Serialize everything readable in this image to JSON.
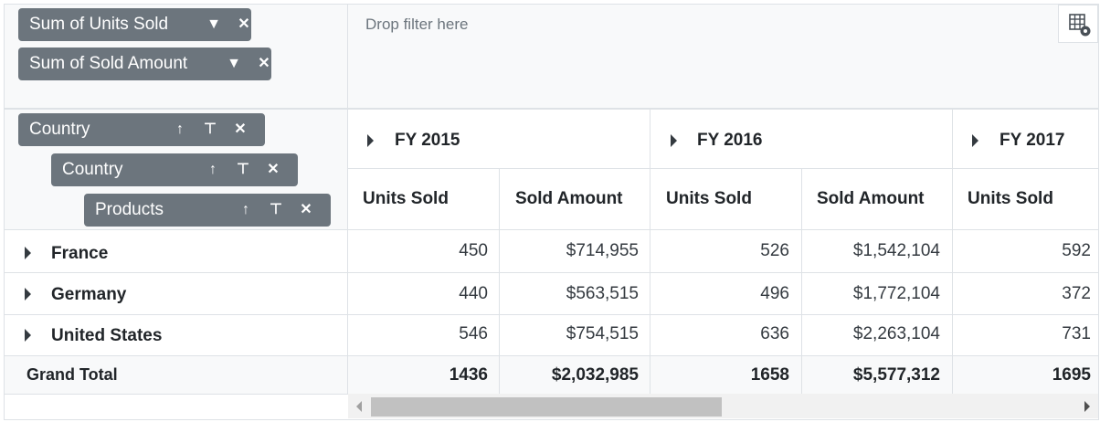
{
  "values_pills": [
    {
      "label": "Sum of Units Sold"
    },
    {
      "label": "Sum of Sold Amount"
    }
  ],
  "filter_area": {
    "placeholder": "Drop filter here"
  },
  "row_pills": [
    {
      "label": "Country"
    },
    {
      "label": "Country"
    },
    {
      "label": "Products"
    }
  ],
  "column_groups": [
    "FY 2015",
    "FY 2016",
    "FY 2017"
  ],
  "measure_headers": [
    "Units Sold",
    "Sold Amount",
    "Units Sold",
    "Sold Amount",
    "Units Sold"
  ],
  "rows": [
    {
      "label": "France",
      "values": [
        "450",
        "$714,955",
        "526",
        "$1,542,104",
        "592"
      ]
    },
    {
      "label": "Germany",
      "values": [
        "440",
        "$563,515",
        "496",
        "$1,772,104",
        "372"
      ]
    },
    {
      "label": "United States",
      "values": [
        "546",
        "$754,515",
        "636",
        "$2,263,104",
        "731"
      ]
    }
  ],
  "grand_total": {
    "label": "Grand Total",
    "values": [
      "1436",
      "$2,032,985",
      "1658",
      "$5,577,312",
      "1695"
    ]
  },
  "colors": {
    "pill": "#6c757d",
    "border": "#dee2e6",
    "header_bg": "#f8f9fa",
    "scroll_thumb": "#c1c1c1"
  }
}
